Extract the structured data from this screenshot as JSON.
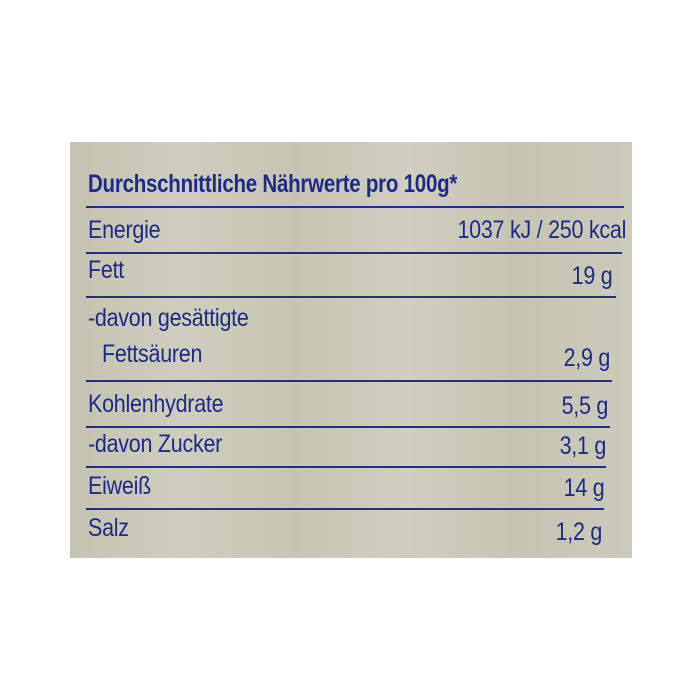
{
  "title": "Durchschnittliche Nährwerte pro 100g*",
  "rows": [
    {
      "label": "Energie",
      "value": "1037 kJ / 250 kcal"
    },
    {
      "label": "Fett",
      "value": "19 g"
    },
    {
      "label": "-davon gesättigte",
      "label2": "Fettsäuren",
      "value": "2,9 g"
    },
    {
      "label": "Kohlenhydrate",
      "value": "5,5 g"
    },
    {
      "label": "-davon Zucker",
      "value": "3,1 g"
    },
    {
      "label": "Eiweiß",
      "value": "14 g"
    },
    {
      "label": "Salz",
      "value": "1,2 g"
    }
  ],
  "colors": {
    "text": "#1f2a86",
    "background": "#c9c8b8"
  }
}
